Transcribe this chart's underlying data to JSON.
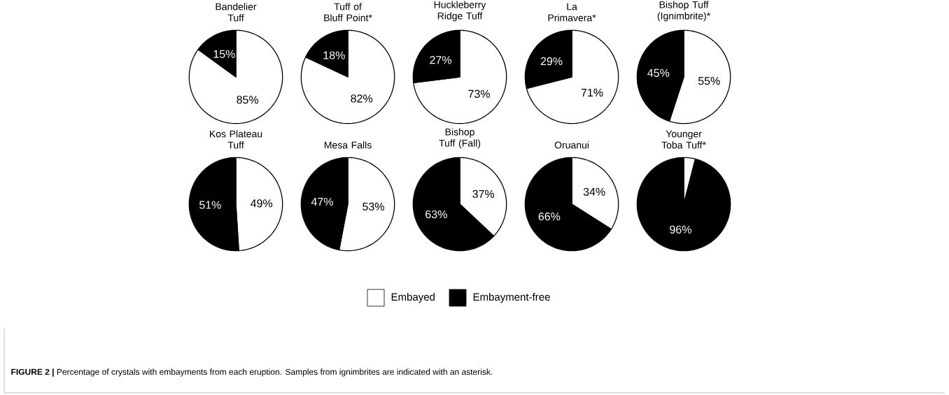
{
  "chart_data": [
    {
      "type": "pie",
      "title": "Bandelier Tuff",
      "categories": [
        "Embayed",
        "Embayment-free"
      ],
      "values": [
        85,
        15
      ],
      "colors": [
        "#ffffff",
        "#000000"
      ],
      "value_labels": [
        "85%",
        "15%"
      ],
      "legend": "bottom",
      "annotations": [
        "**FIGURE 2 |** Percentage of crystals with embayments from each eruption. Samples from ignimbrites are indicated with an asterisk."
      ]
    },
    {
      "type": "pie",
      "title": "Tuff of Bluff Point*",
      "categories": [
        null,
        null
      ],
      "values": [
        82,
        18
      ],
      "colors": [
        "#ffffff",
        "#000000"
      ],
      "value_labels": [
        "82%",
        "18%"
      ]
    },
    {
      "type": "pie",
      "title": "Huckleberry Ridge Tuff",
      "categories": [
        null,
        null
      ],
      "values": [
        73,
        27
      ],
      "colors": [
        "#ffffff",
        "#000000"
      ],
      "value_labels": [
        "73%",
        "27%"
      ]
    },
    {
      "type": "pie",
      "title": "La Primavera*",
      "categories": [
        null,
        null
      ],
      "values": [
        71,
        29
      ],
      "colors": [
        "#ffffff",
        "#000000"
      ],
      "value_labels": [
        "71%",
        "29%"
      ]
    },
    {
      "type": "pie",
      "title": "Bishop Tuff (Ignimbrite)*",
      "categories": [
        null,
        null
      ],
      "values": [
        55,
        45
      ],
      "colors": [
        "#ffffff",
        "#000000"
      ],
      "value_labels": [
        "55%",
        "45%"
      ]
    },
    {
      "type": "pie",
      "title": "Kos Plateau Tuff",
      "categories": [
        null,
        null
      ],
      "values": [
        49,
        51
      ],
      "colors": [
        "#ffffff",
        "#000000"
      ],
      "value_labels": [
        "49%",
        "51%"
      ]
    },
    {
      "type": "pie",
      "title": "Mesa Falls",
      "categories": [
        null,
        null
      ],
      "values": [
        53,
        47
      ],
      "colors": [
        "#ffffff",
        "#000000"
      ],
      "value_labels": [
        "53%",
        "47%"
      ]
    },
    {
      "type": "pie",
      "title": "Bishop Tuff (Fall)",
      "categories": [
        null,
        null
      ],
      "values": [
        37,
        63
      ],
      "colors": [
        "#ffffff",
        "#000000"
      ],
      "value_labels": [
        "37%",
        "63%"
      ]
    },
    {
      "type": "pie",
      "title": "Oruanui",
      "categories": [
        null,
        null
      ],
      "values": [
        34,
        66
      ],
      "colors": [
        "#ffffff",
        "#000000"
      ],
      "value_labels": [
        "34%",
        "66%"
      ]
    },
    {
      "type": "pie",
      "title": "Younger Toba Tuff*",
      "categories": [
        null,
        null
      ],
      "values": [
        4,
        96
      ],
      "colors": [
        "#ffffff",
        "#000000"
      ],
      "value_labels": [
        null,
        "96%"
      ]
    }
  ]
}
